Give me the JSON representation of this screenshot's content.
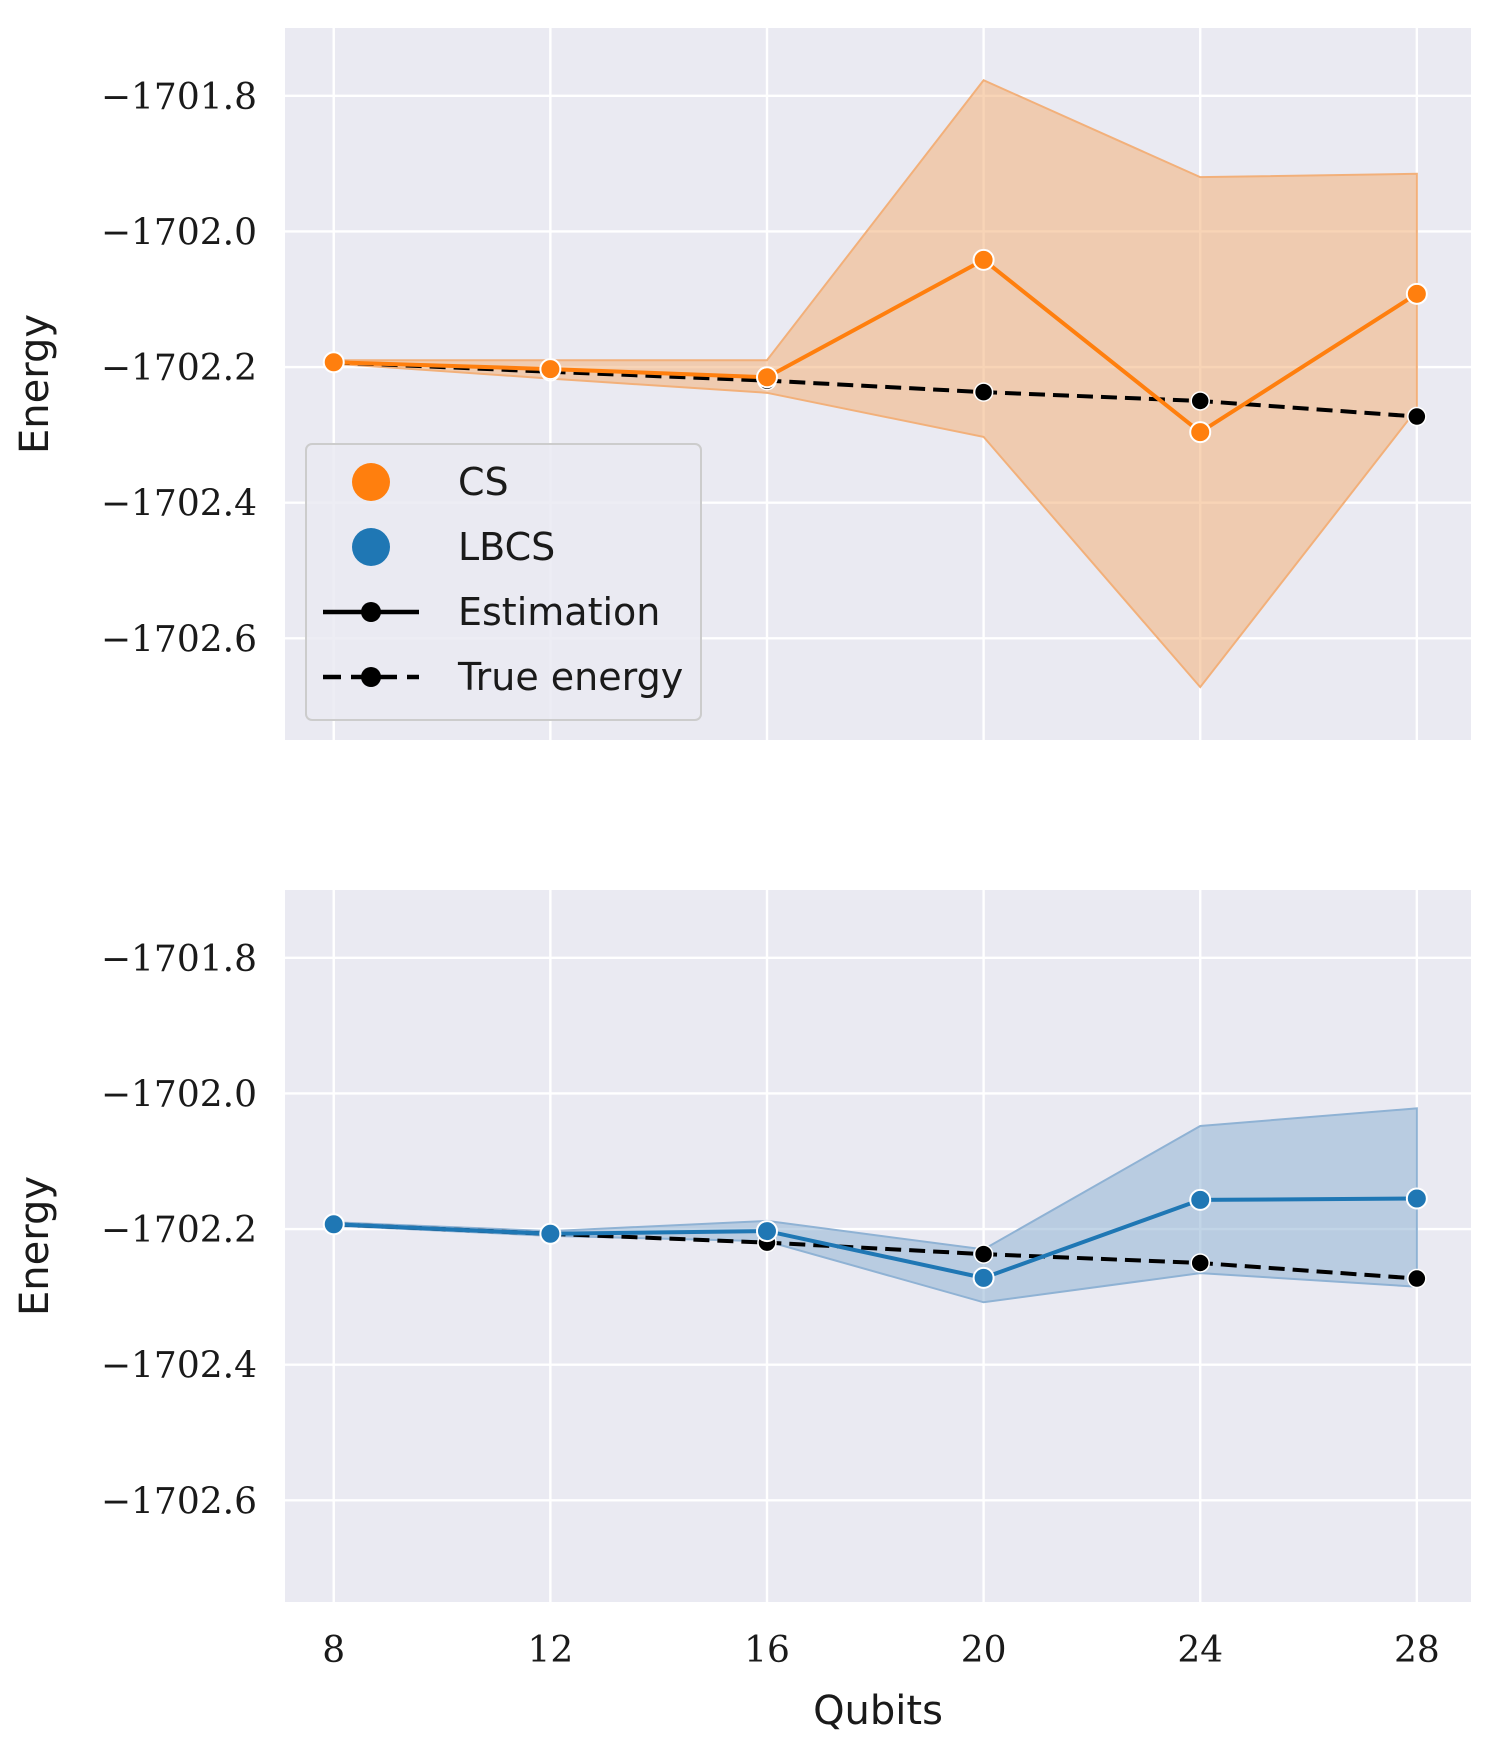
{
  "chart_data": [
    {
      "type": "line",
      "panel": "top",
      "color": "#ff7f0e",
      "band_color": "#f2b07a",
      "x": [
        8,
        12,
        16,
        20,
        24,
        28
      ],
      "xticks": [
        "8",
        "12",
        "16",
        "20",
        "24",
        "28"
      ],
      "xlim": [
        7.1,
        29.0
      ],
      "ylim": [
        -1702.75,
        -1701.7
      ],
      "yticks": [
        -1701.8,
        -1702.0,
        -1702.2,
        -1702.4,
        -1702.6
      ],
      "ytick_labels": [
        "−1701.8",
        "−1702.0",
        "−1702.2",
        "−1702.4",
        "−1702.6"
      ],
      "ylabel": "Energy",
      "xlabel": "",
      "series": [
        {
          "name": "Estimation (CS)",
          "style": "solid",
          "values": [
            -1702.193,
            -1702.203,
            -1702.215,
            -1702.042,
            -1702.296,
            -1702.092
          ]
        },
        {
          "name": "True energy",
          "style": "dashed",
          "values": [
            -1702.193,
            -1702.207,
            -1702.22,
            -1702.237,
            -1702.25,
            -1702.273
          ]
        }
      ],
      "band": {
        "lower": [
          -1702.195,
          -1702.217,
          -1702.238,
          -1702.303,
          -1702.672,
          -1702.262
        ],
        "upper": [
          -1702.19,
          -1702.19,
          -1702.19,
          -1701.777,
          -1701.92,
          -1701.915
        ]
      },
      "legend": {
        "position": "center-left",
        "entries": [
          {
            "label": "CS",
            "kind": "dot",
            "color": "#ff7f0e"
          },
          {
            "label": "LBCS",
            "kind": "dot",
            "color": "#1f77b4"
          },
          {
            "label": "Estimation",
            "kind": "solid",
            "color": "#000000"
          },
          {
            "label": "True energy",
            "kind": "dashed",
            "color": "#000000"
          }
        ]
      }
    },
    {
      "type": "line",
      "panel": "bottom",
      "color": "#1f77b4",
      "band_color": "#8fb2d4",
      "x": [
        8,
        12,
        16,
        20,
        24,
        28
      ],
      "xticks": [
        "8",
        "12",
        "16",
        "20",
        "24",
        "28"
      ],
      "xlim": [
        7.1,
        29.0
      ],
      "ylim": [
        -1702.75,
        -1701.7
      ],
      "yticks": [
        -1701.8,
        -1702.0,
        -1702.2,
        -1702.4,
        -1702.6
      ],
      "ytick_labels": [
        "−1701.8",
        "−1702.0",
        "−1702.2",
        "−1702.4",
        "−1702.6"
      ],
      "ylabel": "Energy",
      "xlabel": "Qubits",
      "series": [
        {
          "name": "Estimation (LBCS)",
          "style": "solid",
          "values": [
            -1702.193,
            -1702.207,
            -1702.203,
            -1702.272,
            -1702.157,
            -1702.155
          ]
        },
        {
          "name": "True energy",
          "style": "dashed",
          "values": [
            -1702.193,
            -1702.207,
            -1702.22,
            -1702.237,
            -1702.25,
            -1702.273
          ]
        }
      ],
      "band": {
        "lower": [
          -1702.195,
          -1702.21,
          -1702.218,
          -1702.308,
          -1702.265,
          -1702.285
        ],
        "upper": [
          -1702.19,
          -1702.203,
          -1702.188,
          -1702.23,
          -1702.048,
          -1702.022
        ]
      }
    }
  ]
}
